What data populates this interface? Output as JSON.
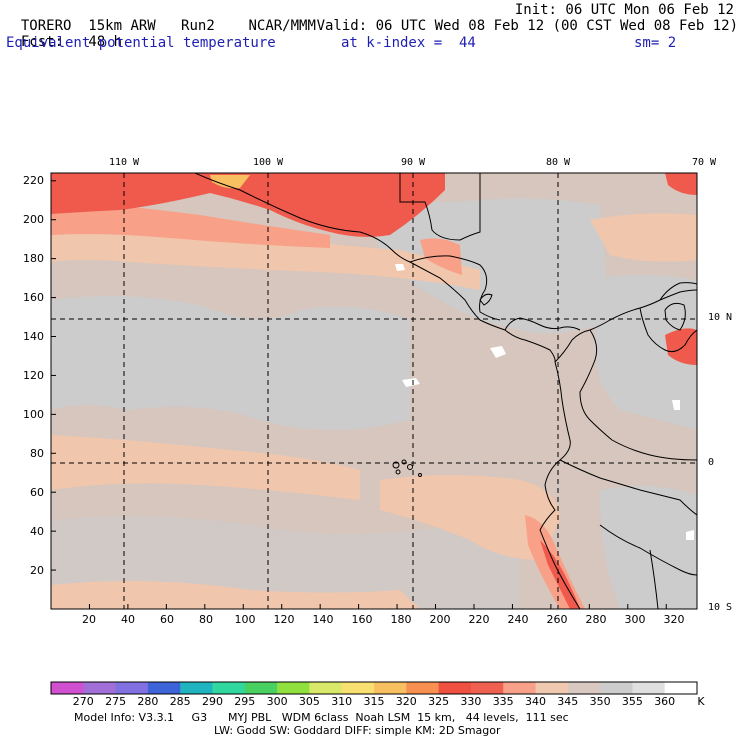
{
  "header": {
    "model": "TORERO",
    "resolution": "15km ARW",
    "run": "Run2",
    "org": "NCAR/MMM",
    "init": "Init: 06 UTC Mon 06 Feb 12",
    "fcst_label": "Fcst:",
    "fcst_value": "48 h",
    "valid": "Valid: 06 UTC Wed 08 Feb 12 (00 CST Wed 08 Feb 12)",
    "field": "Equivalent potential temperature",
    "level": "at k-index =  44",
    "smoothing": "sm= 2"
  },
  "map": {
    "x_ticks": [
      "20",
      "40",
      "60",
      "80",
      "100",
      "120",
      "140",
      "160",
      "180",
      "200",
      "220",
      "240",
      "260",
      "280",
      "300",
      "320"
    ],
    "y_ticks": [
      "20",
      "40",
      "60",
      "80",
      "100",
      "120",
      "140",
      "160",
      "180",
      "200",
      "220"
    ],
    "lon_labels": [
      "110 W",
      "100 W",
      "90 W",
      "80 W",
      "70 W"
    ],
    "lat_labels": [
      "10 N",
      "0",
      "10 S"
    ],
    "x_range": [
      0,
      336
    ],
    "y_range": [
      0,
      224
    ]
  },
  "colorbar": {
    "labels": [
      "270",
      "275",
      "280",
      "285",
      "290",
      "295",
      "300",
      "305",
      "310",
      "315",
      "320",
      "325",
      "330",
      "335",
      "340",
      "345",
      "350",
      "355",
      "360"
    ],
    "unit": "K",
    "colors": [
      "#d050d0",
      "#a070d8",
      "#8070e0",
      "#3c64d8",
      "#20b4c0",
      "#30d8a0",
      "#48d060",
      "#90e040",
      "#d8e868",
      "#f8e070",
      "#f8c060",
      "#f89050",
      "#f05040",
      "#f06050",
      "#f8a088",
      "#f0c8b0",
      "#d8c8c0",
      "#cccccc",
      "#e0e0e0",
      "#ffffff"
    ]
  },
  "footer": {
    "line1": "Model Info: V3.3.1     G3      MYJ PBL   WDM 6class  Noah LSM  15 km,   44 levels,  111 sec",
    "line2": "LW: Godd SW: Goddard DIFF: simple KM: 2D Smagor"
  }
}
